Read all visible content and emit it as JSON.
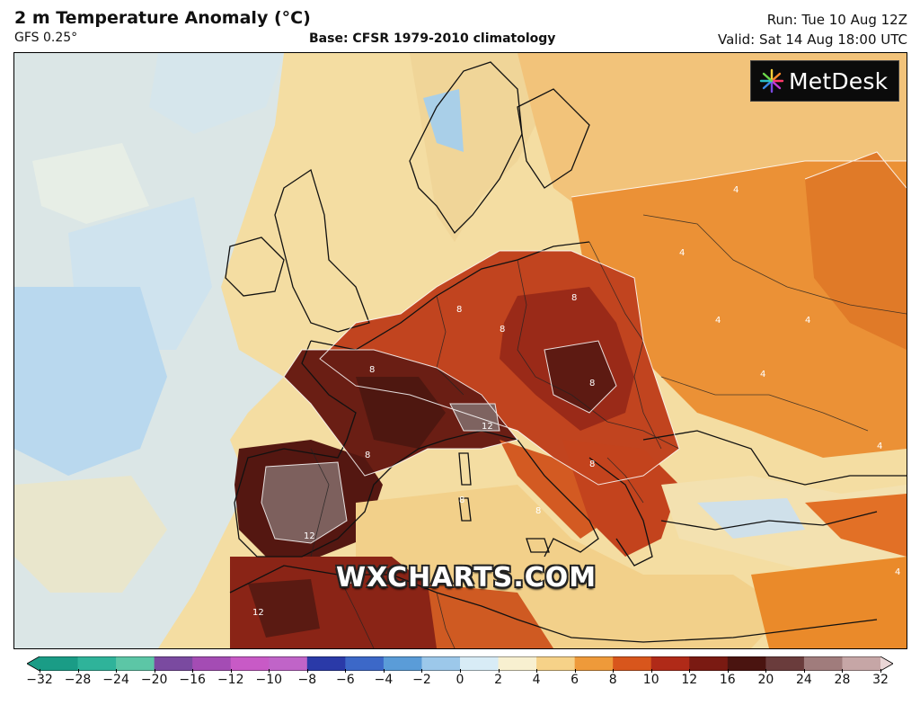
{
  "header": {
    "title": "2 m Temperature Anomaly (°C)",
    "model": "GFS 0.25°",
    "base": "Base: CFSR 1979-2010 climatology",
    "run": "Run: Tue 10 Aug 12Z",
    "valid": "Valid: Sat 14 Aug 18:00 UTC"
  },
  "brand": {
    "name": "MetDesk",
    "logo_icon": "starburst-icon"
  },
  "watermark": "WXCHARTS.COM",
  "map": {
    "region": "Europe",
    "contour_labels": [
      "4",
      "8",
      "12"
    ],
    "anomaly_level_colors": {
      "neutral": "#f6e3b0",
      "cool_blue": "#b9d9ef",
      "plus_4": "#ea8a2a",
      "plus_8": "#b6321c",
      "plus_12": "#5a1a12",
      "extreme": "#7a5e5c"
    }
  },
  "colorbar": {
    "ticks": [
      "−32",
      "−28",
      "−24",
      "−20",
      "−16",
      "−12",
      "−10",
      "−8",
      "−6",
      "−4",
      "−2",
      "0",
      "2",
      "4",
      "6",
      "8",
      "10",
      "12",
      "16",
      "20",
      "24",
      "28",
      "32"
    ],
    "colors": [
      "#1a9c86",
      "#2fb39a",
      "#5cc6a6",
      "#7a4aa0",
      "#a44cb4",
      "#c85ac6",
      "#c064c8",
      "#2a3aa8",
      "#3c68c8",
      "#5a9cd8",
      "#9cc8ea",
      "#d8ecf6",
      "#f8f0d0",
      "#f6d288",
      "#ee9a3a",
      "#d8561c",
      "#b02a18",
      "#7a1a12",
      "#4a1410",
      "#6a3c3c",
      "#a07c7c",
      "#c6a6a6",
      "#ead6d6"
    ]
  }
}
